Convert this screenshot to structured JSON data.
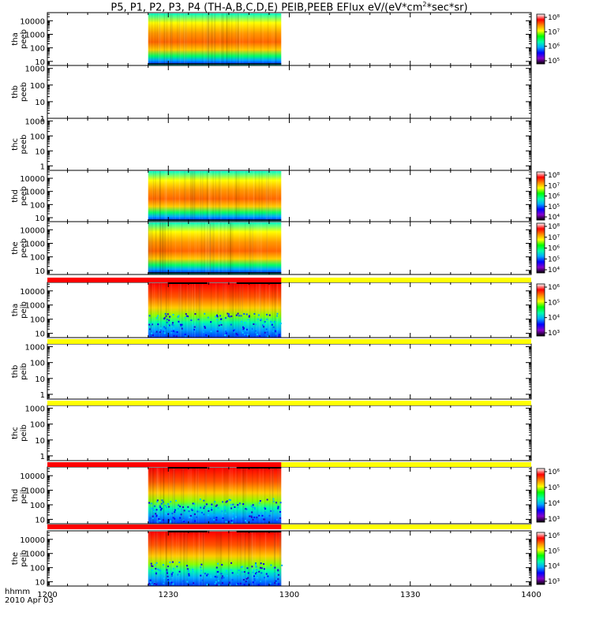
{
  "figure": {
    "title_main": "P5, P1, P2, P3, P4 (TH-A,B,C,D,E) PEIB,PEEB EFlux eV/(eV*cm",
    "title_sup": "2",
    "title_tail": "*sec*sr)",
    "time_unit_label": "hhmm",
    "date_label": "2010 Apr 03"
  },
  "colors": {
    "flag_red": "#ff0000",
    "flag_yellow": "#ffff00",
    "colormap": [
      "#000000",
      "#8800cc",
      "#0000ff",
      "#00aaff",
      "#00ffaa",
      "#00ff00",
      "#ffff00",
      "#ff8800",
      "#ff0000",
      "#ffffff"
    ]
  },
  "chart_data": {
    "type": "heatmap",
    "x_axis": {
      "range": [
        "1200",
        "1400"
      ],
      "ticks": [
        "1200",
        "1230",
        "1300",
        "1330",
        "1400"
      ]
    },
    "data_interval": [
      "1225",
      "1258"
    ],
    "panels": [
      {
        "id": "thapeeb",
        "ylabel": [
          "tha",
          "peeb"
        ],
        "ylog": true,
        "yrange": [
          5,
          40000
        ],
        "yticks": [
          "10",
          "100",
          "1000",
          "10000"
        ],
        "colorbar": [
          "10⁵",
          "10⁶",
          "10⁷",
          "10⁸"
        ],
        "has_data": true,
        "species": "electron"
      },
      {
        "id": "thbpeeb",
        "ylabel": [
          "thb",
          "peeb"
        ],
        "ylog": true,
        "yrange": [
          1,
          1500
        ],
        "yticks": [
          "1",
          "10",
          "100",
          "1000"
        ],
        "colorbar": [],
        "has_data": false
      },
      {
        "id": "thcpeeb",
        "ylabel": [
          "thc",
          "peeb"
        ],
        "ylog": true,
        "yrange": [
          0.5,
          1500
        ],
        "yticks": [
          "1",
          "10",
          "100",
          "1000"
        ],
        "colorbar": [],
        "has_data": false
      },
      {
        "id": "thdpeeb",
        "ylabel": [
          "thd",
          "peeb"
        ],
        "ylog": true,
        "yrange": [
          5,
          40000
        ],
        "yticks": [
          "10",
          "100",
          "1000",
          "10000"
        ],
        "colorbar": [
          "10⁴",
          "10⁵",
          "10⁶",
          "10⁷",
          "10⁸"
        ],
        "has_data": true,
        "species": "electron"
      },
      {
        "id": "thepeeb",
        "ylabel": [
          "the",
          "peeb"
        ],
        "ylog": true,
        "yrange": [
          5,
          40000
        ],
        "yticks": [
          "10",
          "100",
          "1000",
          "10000"
        ],
        "colorbar": [
          "10⁴",
          "10⁵",
          "10⁶",
          "10⁷",
          "10⁸"
        ],
        "has_data": true,
        "species": "electron"
      },
      {
        "id": "thapeib",
        "ylabel": [
          "tha",
          "peib"
        ],
        "ylog": true,
        "yrange": [
          5,
          40000
        ],
        "yticks": [
          "10",
          "100",
          "1000",
          "10000"
        ],
        "colorbar": [
          "10³",
          "10⁴",
          "10⁵",
          "10⁶"
        ],
        "has_data": true,
        "species": "ion"
      },
      {
        "id": "thbpeib",
        "ylabel": [
          "thb",
          "peib"
        ],
        "ylog": true,
        "yrange": [
          0.5,
          1500
        ],
        "yticks": [
          "1",
          "10",
          "100",
          "1000"
        ],
        "colorbar": [],
        "has_data": false
      },
      {
        "id": "thcpeib",
        "ylabel": [
          "thc",
          "peib"
        ],
        "ylog": true,
        "yrange": [
          0.5,
          1500
        ],
        "yticks": [
          "1",
          "10",
          "100",
          "1000"
        ],
        "colorbar": [],
        "has_data": false
      },
      {
        "id": "thdpeib",
        "ylabel": [
          "thd",
          "peib"
        ],
        "ylog": true,
        "yrange": [
          5,
          40000
        ],
        "yticks": [
          "10",
          "100",
          "1000",
          "10000"
        ],
        "colorbar": [
          "10³",
          "10⁴",
          "10⁵",
          "10⁶"
        ],
        "has_data": true,
        "species": "ion"
      },
      {
        "id": "thepeib",
        "ylabel": [
          "the",
          "peib"
        ],
        "ylog": true,
        "yrange": [
          5,
          40000
        ],
        "yticks": [
          "10",
          "100",
          "1000",
          "10000"
        ],
        "colorbar": [
          "10³",
          "10⁴",
          "10⁵",
          "10⁶"
        ],
        "has_data": true,
        "species": "ion"
      }
    ],
    "flag_bars": [
      {
        "after_panel": "thepeeb",
        "red_until": "1258"
      },
      {
        "after_panel": "thapeib",
        "red_until": null
      },
      {
        "after_panel": "thbpeib",
        "red_until": null
      },
      {
        "after_panel": "thcpeib",
        "red_until": "1258"
      },
      {
        "after_panel": "thdpeib",
        "red_until": "1258"
      }
    ]
  }
}
